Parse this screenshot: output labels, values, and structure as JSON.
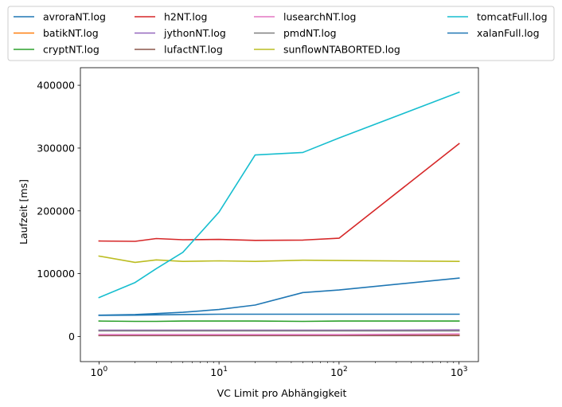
{
  "chart_data": {
    "type": "line",
    "title": "",
    "xlabel": "VC Limit pro Abhängigkeit",
    "ylabel": "Laufzeit [ms]",
    "xscale": "log",
    "xlim": [
      0.7,
      1450
    ],
    "ylim": [
      -40000,
      428000
    ],
    "grid": false,
    "legend_placement": "top, outside plot, 4 columns",
    "x_ticks": [
      {
        "value": 1,
        "base": "10",
        "exp": "0"
      },
      {
        "value": 10,
        "base": "10",
        "exp": "1"
      },
      {
        "value": 100,
        "base": "10",
        "exp": "2"
      },
      {
        "value": 1000,
        "base": "10",
        "exp": "3"
      }
    ],
    "y_ticks": [
      {
        "value": 0,
        "label": "0"
      },
      {
        "value": 100000,
        "label": "100000"
      },
      {
        "value": 200000,
        "label": "200000"
      },
      {
        "value": 300000,
        "label": "300000"
      },
      {
        "value": 400000,
        "label": "400000"
      }
    ],
    "series": [
      {
        "name": "avroraNT.log",
        "color": "#1f77b4",
        "x": [
          1,
          2,
          3,
          5,
          10,
          20,
          50,
          100,
          1000
        ],
        "y": [
          33500,
          34000,
          34500,
          35000,
          35500,
          35500,
          35500,
          35500,
          35500
        ]
      },
      {
        "name": "batikNT.log",
        "color": "#ff7f0e",
        "x": [
          1,
          2,
          3,
          5,
          10,
          20,
          50,
          100,
          1000
        ],
        "y": [
          2000,
          2000,
          2000,
          2000,
          2000,
          2000,
          2000,
          2000,
          2000
        ]
      },
      {
        "name": "cryptNT.log",
        "color": "#2ca02c",
        "x": [
          1,
          2,
          3,
          5,
          10,
          20,
          50,
          100,
          1000
        ],
        "y": [
          24500,
          24000,
          24000,
          24500,
          24500,
          24500,
          24000,
          24500,
          24500
        ]
      },
      {
        "name": "h2NT.log",
        "color": "#d62728",
        "x": [
          1,
          2,
          3,
          5,
          10,
          20,
          50,
          100,
          1000
        ],
        "y": [
          152000,
          151500,
          156000,
          154000,
          154500,
          153000,
          153500,
          156500,
          307000
        ]
      },
      {
        "name": "jythonNT.log",
        "color": "#9467bd",
        "x": [
          1,
          2,
          3,
          5,
          10,
          20,
          50,
          100,
          1000
        ],
        "y": [
          10000,
          10000,
          10000,
          10000,
          10000,
          10000,
          10000,
          10000,
          10500
        ]
      },
      {
        "name": "lufactNT.log",
        "color": "#8c564b",
        "x": [
          1,
          2,
          3,
          5,
          10,
          20,
          50,
          100,
          1000
        ],
        "y": [
          1500,
          1500,
          1500,
          1500,
          1500,
          1500,
          1500,
          1500,
          1500
        ]
      },
      {
        "name": "lusearchNT.log",
        "color": "#e377c2",
        "x": [
          1,
          2,
          3,
          5,
          10,
          20,
          50,
          100,
          1000
        ],
        "y": [
          3000,
          3000,
          3000,
          3000,
          3000,
          3000,
          3000,
          3000,
          4000
        ]
      },
      {
        "name": "pmdNT.log",
        "color": "#7f7f7f",
        "x": [
          1,
          2,
          3,
          5,
          10,
          20,
          50,
          100,
          1000
        ],
        "y": [
          9000,
          9000,
          9000,
          9000,
          9000,
          9000,
          9000,
          9000,
          9000
        ]
      },
      {
        "name": "sunflowNTABORTED.log",
        "color": "#bcbd22",
        "x": [
          1,
          2,
          3,
          5,
          10,
          20,
          50,
          100,
          1000
        ],
        "y": [
          128000,
          118000,
          122000,
          119500,
          120500,
          119500,
          121500,
          121000,
          119500
        ]
      },
      {
        "name": "tomcatFull.log",
        "color": "#17becf",
        "x": [
          1,
          2,
          3,
          5,
          10,
          20,
          50,
          100,
          1000
        ],
        "y": [
          62000,
          86000,
          108000,
          134000,
          198000,
          289000,
          293000,
          316000,
          389000
        ]
      },
      {
        "name": "xalanFull.log",
        "color": "#1f77b4",
        "x": [
          1,
          2,
          3,
          5,
          10,
          20,
          50,
          100,
          1000
        ],
        "y": [
          34000,
          35000,
          36500,
          38500,
          43000,
          50000,
          70000,
          74000,
          93000
        ]
      }
    ]
  }
}
